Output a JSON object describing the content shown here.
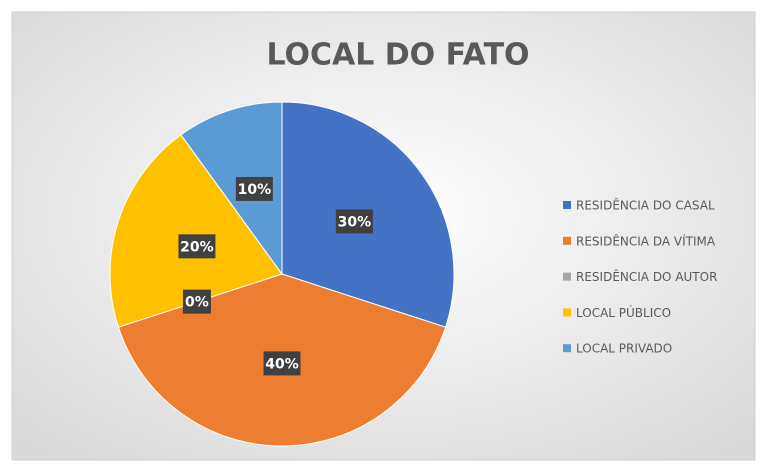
{
  "chart_data": {
    "type": "pie",
    "title": "LOCAL DO FATO",
    "categories": [
      "RESIDÊNCIA DO CASAL",
      "RESIDÊNCIA DA VÍTIMA",
      "RESIDÊNCIA DO AUTOR",
      "LOCAL PÚBLICO",
      "LOCAL PRIVADO"
    ],
    "values": [
      30,
      40,
      0,
      20,
      10
    ],
    "value_labels": [
      "30%",
      "40%",
      "0%",
      "20%",
      "10%"
    ],
    "colors": [
      "#4472c4",
      "#ed7d31",
      "#a5a5a5",
      "#ffc000",
      "#5b9bd5"
    ],
    "legend": "right"
  }
}
